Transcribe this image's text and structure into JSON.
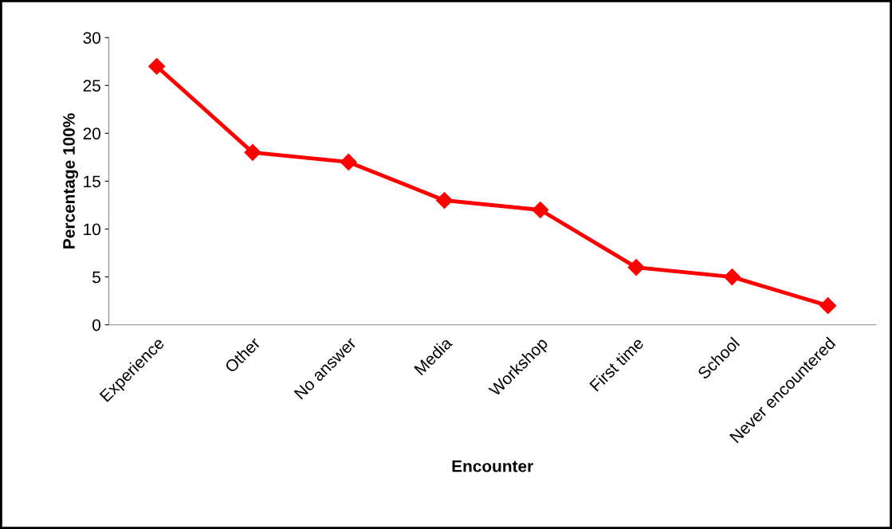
{
  "chart_data": {
    "type": "line",
    "xlabel": "Encounter",
    "ylabel": "Percentage 100%",
    "categories": [
      "Experience",
      "Other",
      "No answer",
      "Media",
      "Workshop",
      "First time",
      "School",
      "Never encountered"
    ],
    "series": [
      {
        "color": "#ff0000",
        "values": [
          27,
          18,
          17,
          13,
          12,
          6,
          5,
          2
        ]
      }
    ],
    "ylim": [
      0,
      30
    ],
    "yticks": [
      0,
      5,
      10,
      15,
      20,
      25,
      30
    ],
    "grid": false,
    "marker": "diamond",
    "line_style": "solid"
  }
}
